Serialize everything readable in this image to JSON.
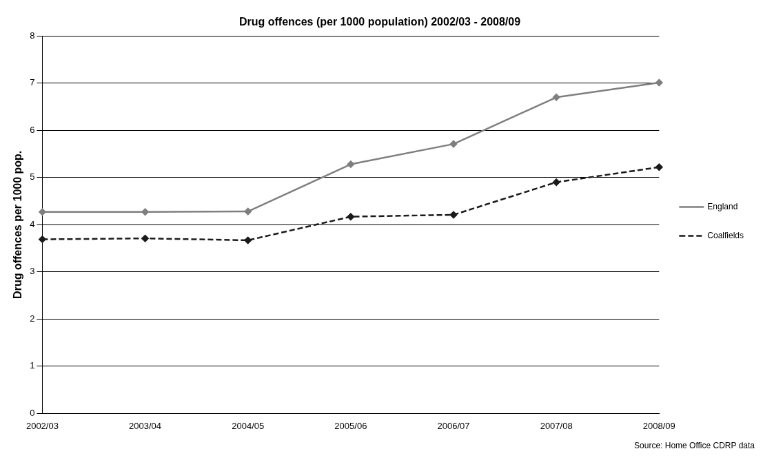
{
  "chart_data": {
    "type": "line",
    "title": "Drug offences (per 1000 population) 2002/03 - 2008/09",
    "ylabel": "Drug offences per 1000 pop.",
    "annotations": [
      "Source: Home Office CDRP data"
    ],
    "categories": [
      "2002/03",
      "2003/04",
      "2004/05",
      "2005/06",
      "2006/07",
      "2007/08",
      "2008/09"
    ],
    "series": [
      {
        "name": "England",
        "color": "#7f7f7f",
        "line_style": "solid",
        "values": [
          4.27,
          4.27,
          4.28,
          5.28,
          5.71,
          6.7,
          7.01
        ]
      },
      {
        "name": "Coalfields",
        "color": "#1a1a1a",
        "line_style": "dashed",
        "values": [
          3.69,
          3.71,
          3.67,
          4.17,
          4.21,
          4.9,
          5.22
        ]
      }
    ],
    "ylim": [
      0,
      8
    ],
    "yticks": [
      0,
      1,
      2,
      3,
      4,
      5,
      6,
      7,
      8
    ],
    "grid": "y",
    "legend": "right",
    "marker": "diamond"
  }
}
